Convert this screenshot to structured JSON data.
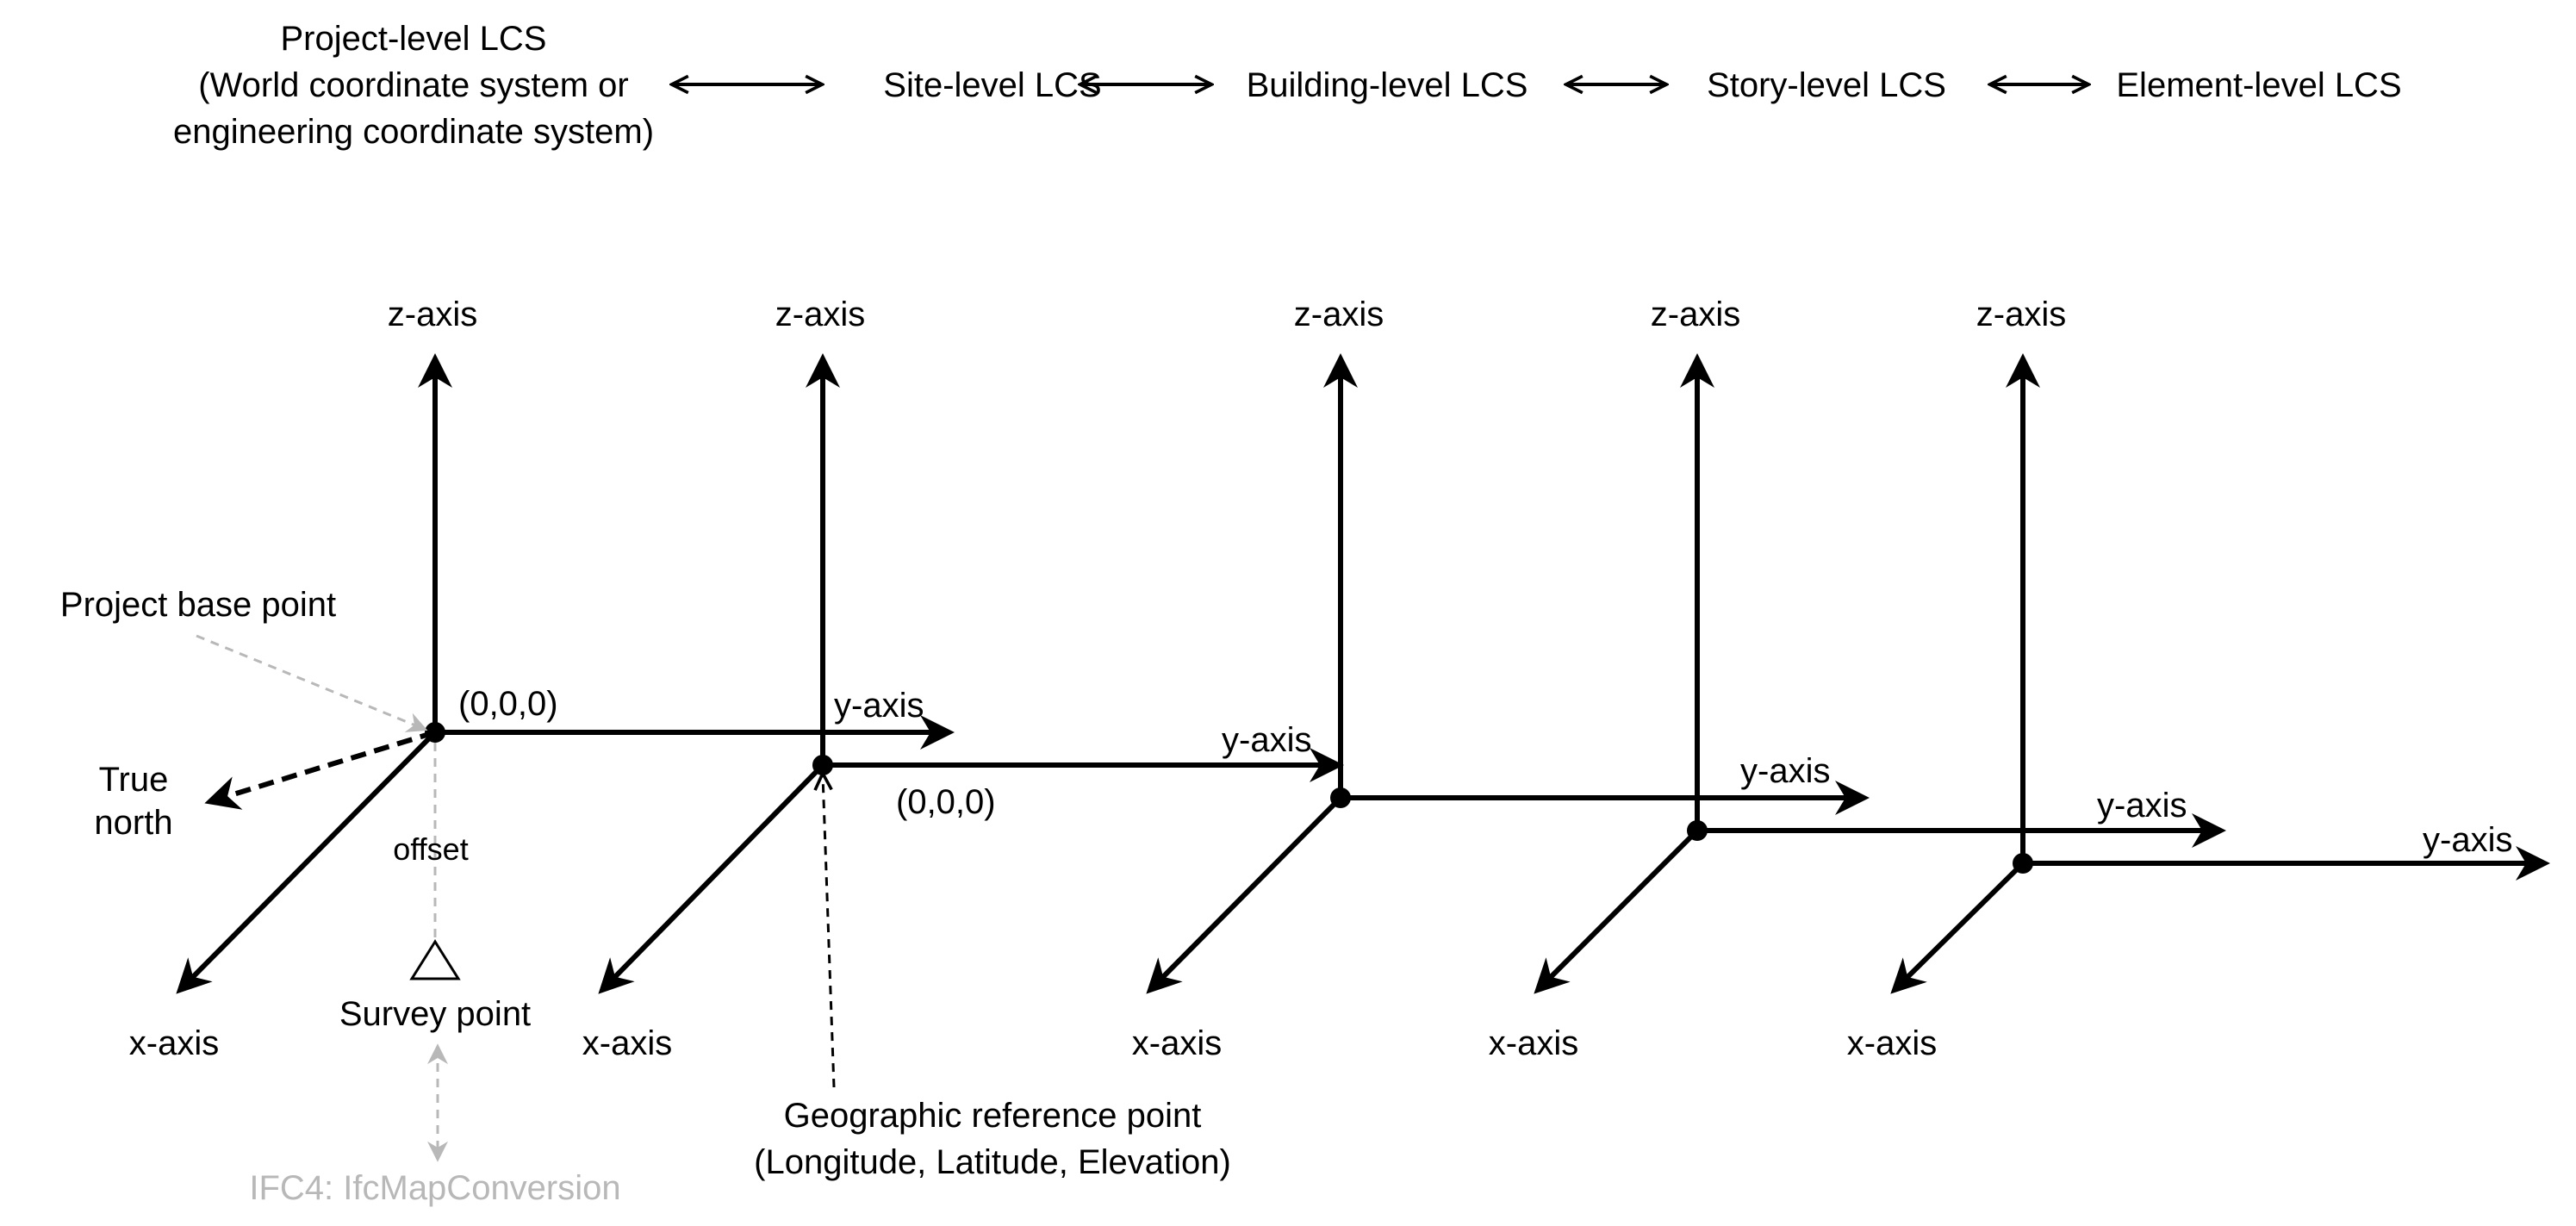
{
  "hierarchy": {
    "project_lines": [
      "Project-level LCS",
      "(World coordinate system or",
      "engineering coordinate system)"
    ],
    "levels": [
      "Site-level LCS",
      "Building-level LCS",
      "Story-level LCS",
      "Element-level LCS"
    ]
  },
  "axes": {
    "z": "z-axis",
    "y": "y-axis",
    "x": "x-axis"
  },
  "origin_label": "(0,0,0)",
  "annotations": {
    "project_base_point": "Project base point",
    "true_north_lines": [
      "True",
      "north"
    ],
    "offset": "offset",
    "survey_point": "Survey point",
    "ifc_map_conversion": "IFC4: IfcMapConversion",
    "geo_ref_lines": [
      "Geographic reference point",
      "(Longitude, Latitude, Elevation)"
    ]
  },
  "colors": {
    "ink": "#000000",
    "muted": "#b8b8b8",
    "background": "#ffffff"
  },
  "coordinate_systems": [
    {
      "name": "project"
    },
    {
      "name": "site"
    },
    {
      "name": "building"
    },
    {
      "name": "story"
    },
    {
      "name": "element"
    }
  ]
}
